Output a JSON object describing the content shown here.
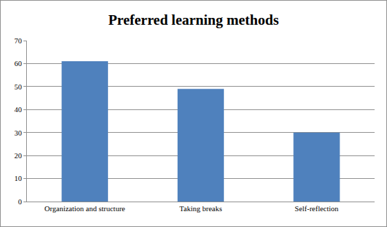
{
  "chart_data": {
    "type": "bar",
    "title": "Preferred learning methods",
    "categories": [
      "Organization and structure",
      "Taking breaks",
      "Self-reflection"
    ],
    "values": [
      61,
      49,
      30
    ],
    "color": "#4f81bd",
    "ylim": [
      0,
      70
    ],
    "yticks": [
      0,
      10,
      20,
      30,
      40,
      50,
      60,
      70
    ],
    "grid": true
  }
}
